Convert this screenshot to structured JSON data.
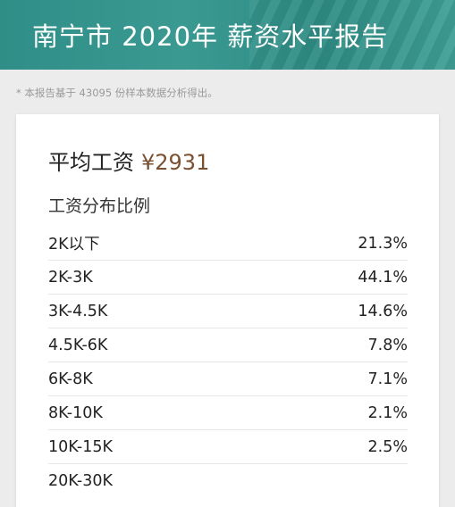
{
  "header": {
    "title": "南宁市 2020年 薪资水平报告"
  },
  "note": "* 本报告基于 43095 份样本数据分析得出。",
  "card": {
    "avg_label": "平均工资",
    "avg_value": "¥2931",
    "dist_title": "工资分布比例",
    "rows": [
      {
        "range": "2K以下",
        "pct": "21.3%"
      },
      {
        "range": "2K-3K",
        "pct": "44.1%"
      },
      {
        "range": "3K-4.5K",
        "pct": "14.6%"
      },
      {
        "range": "4.5K-6K",
        "pct": "7.8%"
      },
      {
        "range": "6K-8K",
        "pct": "7.1%"
      },
      {
        "range": "8K-10K",
        "pct": "2.1%"
      },
      {
        "range": "10K-15K",
        "pct": "2.5%"
      },
      {
        "range": "20K-30K",
        "pct": ""
      }
    ]
  },
  "colors": {
    "header_teal": "#2f8f88",
    "value_brown": "#7a5030"
  }
}
